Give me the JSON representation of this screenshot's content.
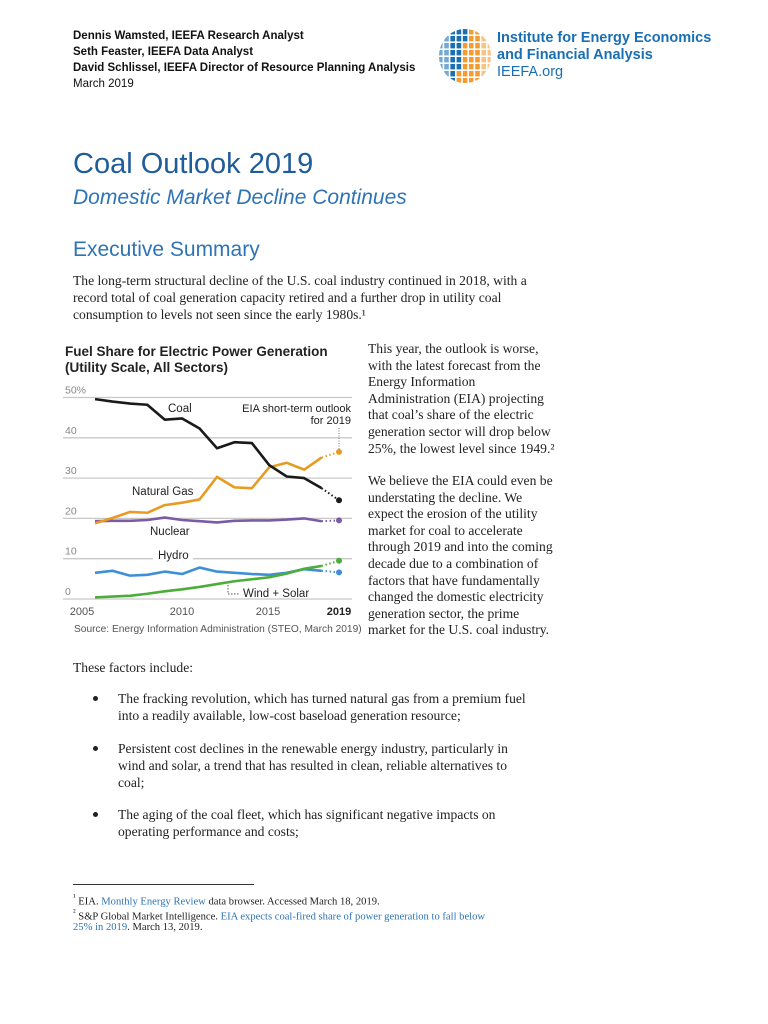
{
  "header": {
    "authors": [
      "Dennis Wamsted, IEEFA Research Analyst",
      "Seth Feaster, IEEFA Data Analyst",
      "David Schlissel, IEEFA Director of Resource Planning Analysis"
    ],
    "date": "March 2019",
    "logo": {
      "line1": "Institute for Energy Economics",
      "line2": "and Financial Analysis",
      "line3": "IEEFA.org",
      "colors": {
        "blue": "#1a6fb3",
        "orange": "#f39c32"
      }
    }
  },
  "title": "Coal Outlook 2019",
  "subtitle": "Domestic Market Decline Continues",
  "section_heading": "Executive Summary",
  "intro_lines": [
    "The long-term structural decline of the U.S. coal industry continued in 2018, with a",
    "record total of coal generation capacity retired and a further drop in utility coal",
    "consumption to levels not seen since the early 1980s.¹"
  ],
  "side_lines_1": [
    "This year, the outlook is worse,",
    "with the latest forecast from the",
    "Energy Information",
    "Administration (EIA) projecting",
    "that coal’s share of the electric",
    "generation sector will drop below",
    "25%, the lowest level since 1949.²"
  ],
  "side_lines_2": [
    "We believe the EIA could even be",
    "understating the decline. We",
    "expect the erosion of the utility",
    "market for coal to accelerate",
    "through 2019 and into the coming",
    "decade due to a combination of",
    "factors that have fundamentally",
    "changed the domestic electricity",
    "generation sector, the prime",
    "market for the U.S. coal industry."
  ],
  "factors_intro": "These factors include:",
  "bullets": [
    {
      "lines": [
        "The fracking revolution, which has turned natural gas from a premium fuel",
        "into a readily available, low-cost baseload generation resource;"
      ]
    },
    {
      "lines": [
        "Persistent cost declines in the renewable energy industry, particularly in",
        "wind and solar, a trend that has resulted in clean, reliable alternatives to",
        "coal;"
      ]
    },
    {
      "lines": [
        "The aging of the coal fleet, which has significant negative impacts on",
        "operating performance and costs;"
      ]
    }
  ],
  "footnotes": {
    "fn1": {
      "mark": "¹",
      "pre": " EIA. ",
      "link": "Monthly Energy Review",
      "post": " data browser. Accessed March 18, 2019."
    },
    "fn2": {
      "mark": "²",
      "pre": " S&P Global Market Intelligence. ",
      "link_a": "EIA expects coal-fired share of power generation to fall below",
      "link_b": "25% in 2019",
      "post": ". March 13, 2019."
    }
  },
  "chart_data": {
    "type": "line",
    "title": "Fuel Share for Electric Power Generation",
    "subtitle": "(Utility Scale, All Sectors)",
    "source": "Source:  Energy Information Administration (STEO, March 2019)",
    "x": [
      2005,
      2006,
      2007,
      2008,
      2009,
      2010,
      2011,
      2012,
      2013,
      2014,
      2015,
      2016,
      2017,
      2018,
      2019
    ],
    "x_ticks": [
      "2005",
      "2010",
      "2015",
      "2019"
    ],
    "y_ticks": [
      "50%",
      "40",
      "30",
      "20",
      "10",
      "0"
    ],
    "ylim": [
      0,
      50
    ],
    "grid": true,
    "forecast_note": [
      "EIA short-term outlook",
      "for 2019"
    ],
    "forecast_year": 2019,
    "series": [
      {
        "name": "Coal",
        "color": "#1a1a1a",
        "values": [
          49.6,
          49.0,
          48.5,
          48.2,
          44.5,
          44.8,
          42.3,
          37.4,
          38.9,
          38.7,
          33.2,
          30.4,
          30.0,
          27.5,
          24.5
        ]
      },
      {
        "name": "Natural Gas",
        "color": "#e89b22",
        "values": [
          18.8,
          20.1,
          21.6,
          21.4,
          23.3,
          23.9,
          24.7,
          30.3,
          27.7,
          27.5,
          32.7,
          33.8,
          32.1,
          35.1,
          36.5
        ]
      },
      {
        "name": "Nuclear",
        "color": "#7b5aa6",
        "values": [
          19.3,
          19.4,
          19.4,
          19.6,
          20.2,
          19.6,
          19.3,
          19.0,
          19.4,
          19.5,
          19.5,
          19.7,
          20.0,
          19.3,
          19.5
        ]
      },
      {
        "name": "Hydro",
        "color": "#3f8fd6",
        "values": [
          6.5,
          7.0,
          5.8,
          6.0,
          6.8,
          6.2,
          7.8,
          6.8,
          6.5,
          6.2,
          6.0,
          6.5,
          7.4,
          7.0,
          6.6
        ]
      },
      {
        "name": "Wind + Solar",
        "color": "#4cae3a",
        "values": [
          0.4,
          0.6,
          0.8,
          1.3,
          1.9,
          2.4,
          3.0,
          3.7,
          4.4,
          4.9,
          5.4,
          6.3,
          7.5,
          8.2,
          9.5
        ]
      }
    ]
  }
}
